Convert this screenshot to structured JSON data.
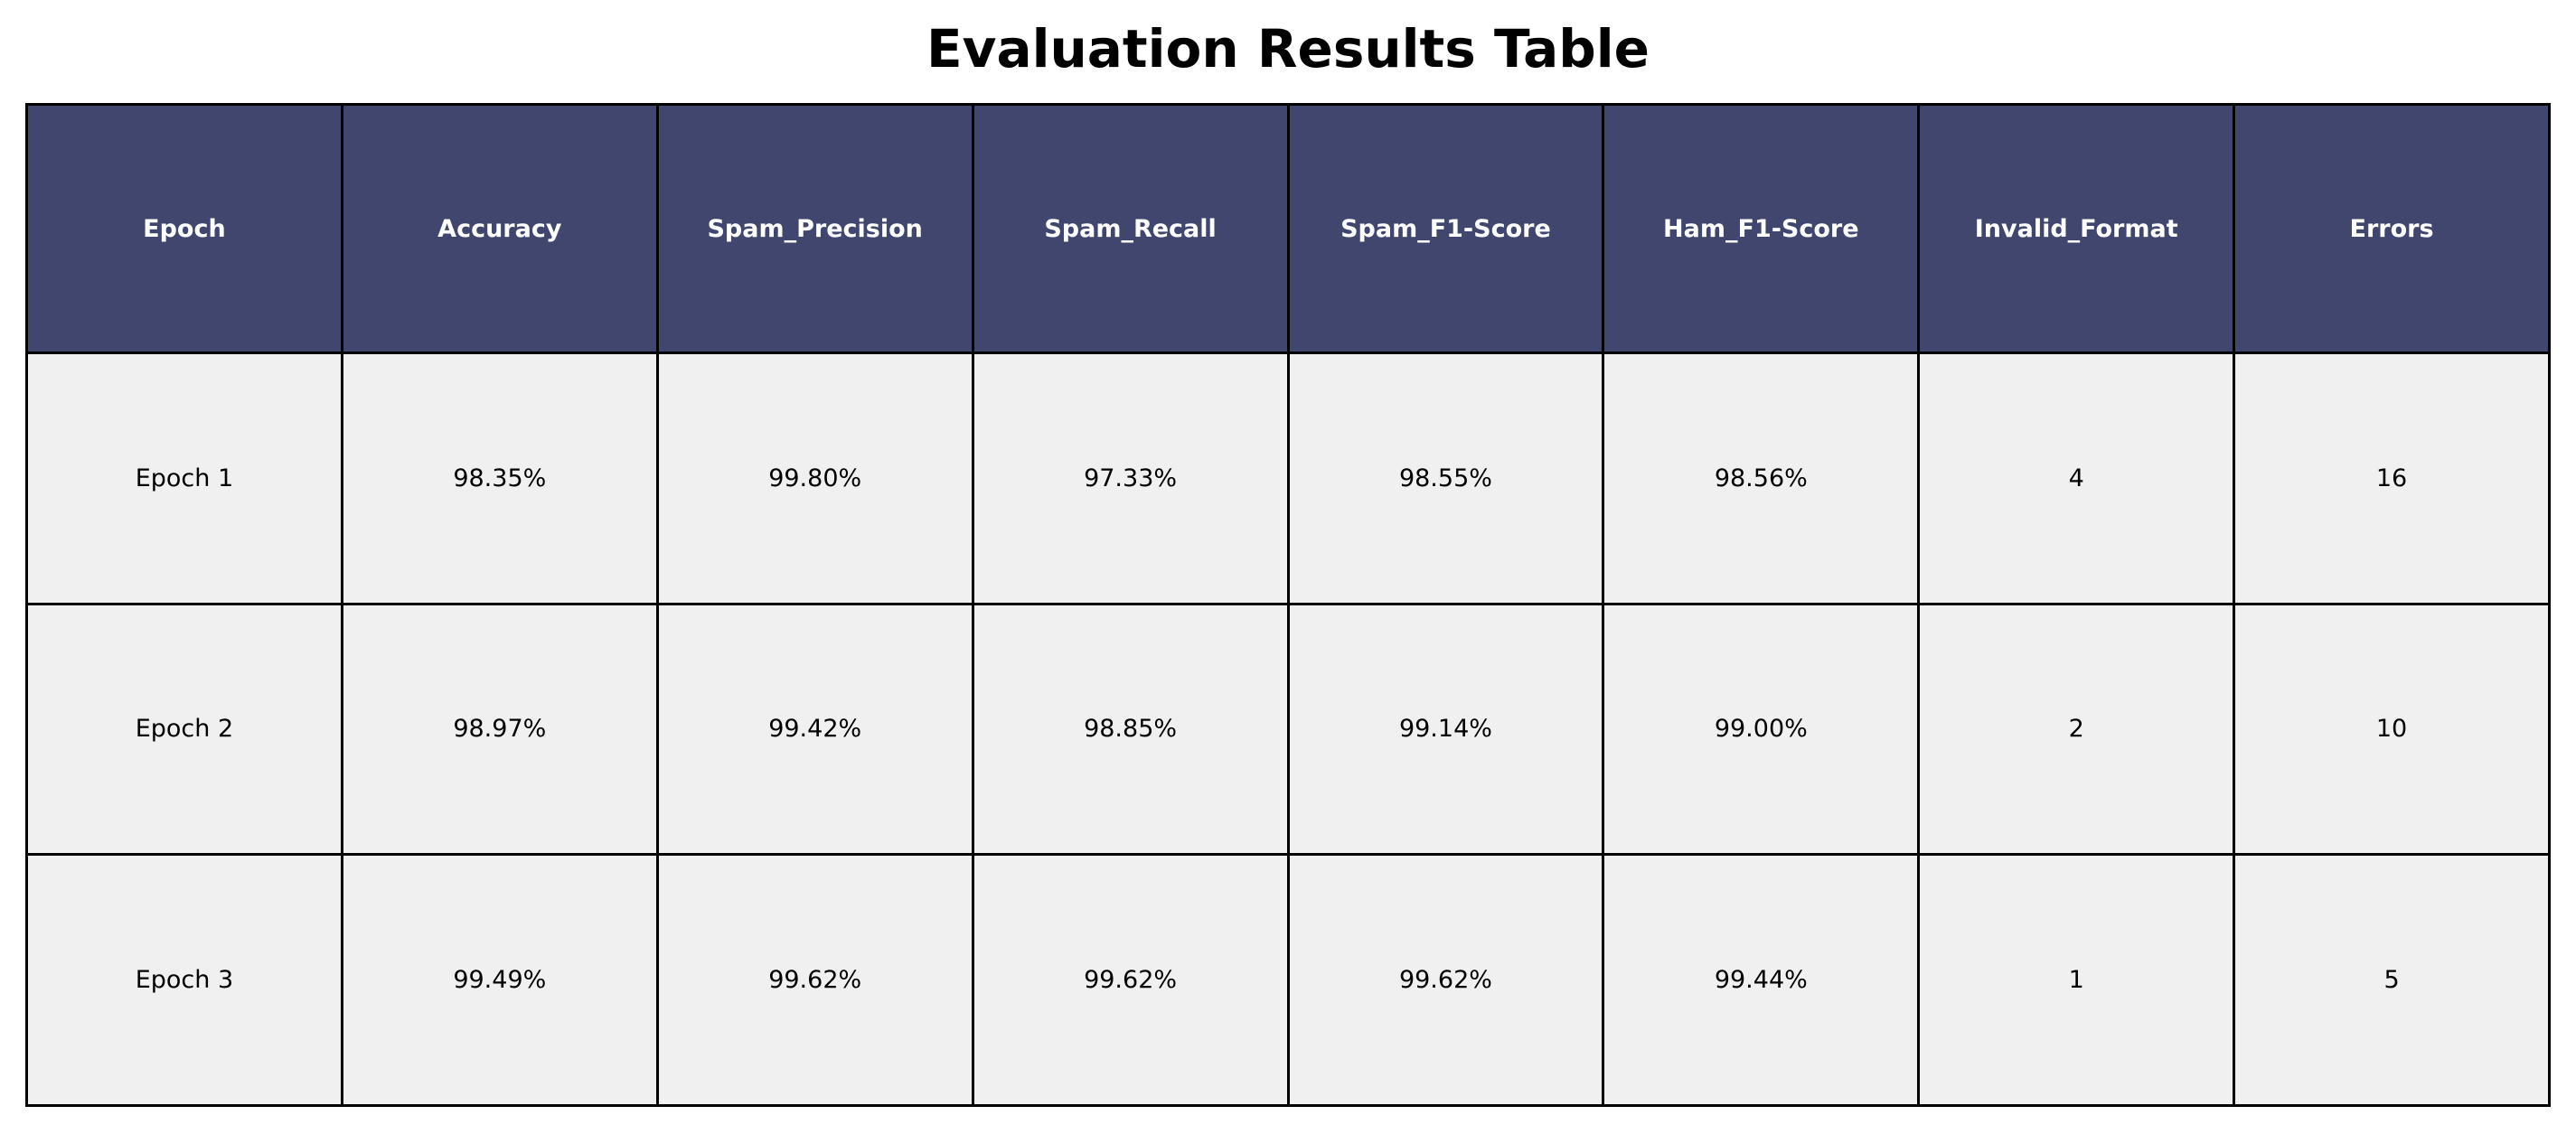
{
  "chart_data": {
    "type": "table",
    "title": "Evaluation Results Table",
    "columns": [
      "Epoch",
      "Accuracy",
      "Spam_Precision",
      "Spam_Recall",
      "Spam_F1-Score",
      "Ham_F1-Score",
      "Invalid_Format",
      "Errors"
    ],
    "rows": [
      [
        "Epoch 1",
        "98.35%",
        "99.80%",
        "97.33%",
        "98.55%",
        "98.56%",
        "4",
        "16"
      ],
      [
        "Epoch 2",
        "98.97%",
        "99.42%",
        "98.85%",
        "99.14%",
        "99.00%",
        "2",
        "10"
      ],
      [
        "Epoch 3",
        "99.49%",
        "99.62%",
        "99.62%",
        "99.62%",
        "99.44%",
        "1",
        "5"
      ]
    ],
    "grid": true
  },
  "colors": {
    "header_background": "#40466e",
    "header_text": "#ffffff",
    "cell_background": "#f0f0f0",
    "cell_text": "#000000",
    "border": "#000000"
  }
}
